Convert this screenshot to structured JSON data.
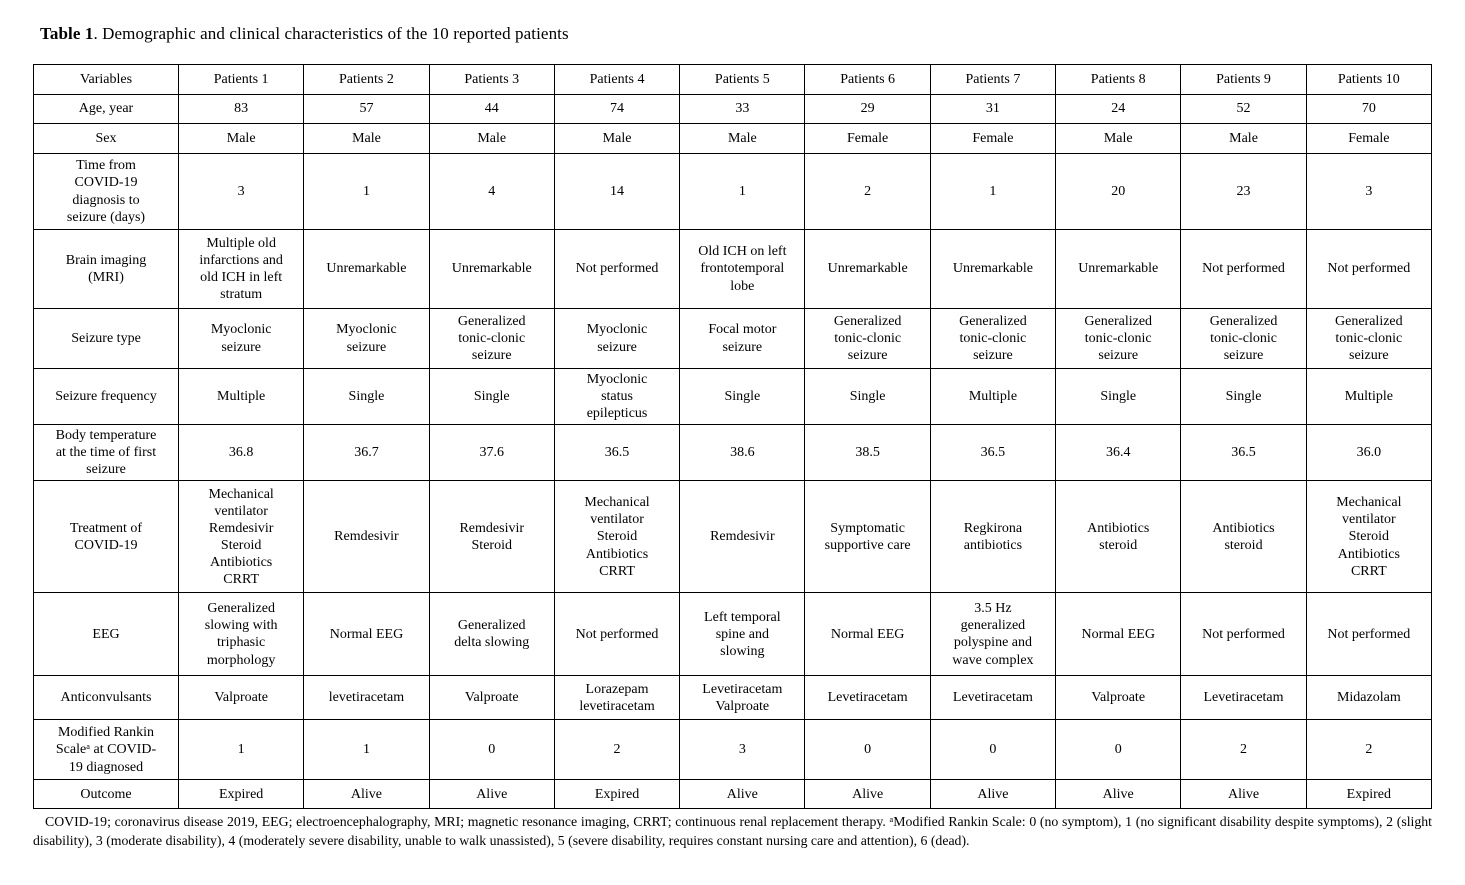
{
  "title": {
    "bold": "Table 1",
    "caption": ". Demographic and clinical characteristics of the 10 reported patients"
  },
  "table": {
    "header": [
      "Variables",
      "Patients 1",
      "Patients 2",
      "Patients 3",
      "Patients 4",
      "Patients 5",
      "Patients 6",
      "Patients 7",
      "Patients 8",
      "Patients 9",
      "Patients 10"
    ],
    "rows": [
      {
        "label": "Age, year",
        "values": [
          "83",
          "57",
          "44",
          "74",
          "33",
          "29",
          "31",
          "24",
          "52",
          "70"
        ]
      },
      {
        "label": "Sex",
        "values": [
          "Male",
          "Male",
          "Male",
          "Male",
          "Male",
          "Female",
          "Female",
          "Male",
          "Male",
          "Female"
        ]
      },
      {
        "label": "Time from\nCOVID-19\ndiagnosis to\nseizure (days)",
        "values": [
          "3",
          "1",
          "4",
          "14",
          "1",
          "2",
          "1",
          "20",
          "23",
          "3"
        ]
      },
      {
        "label": "Brain imaging\n(MRI)",
        "values": [
          "Multiple old\ninfarctions and\nold ICH in left\nstratum",
          "Unremarkable",
          "Unremarkable",
          "Not performed",
          "Old ICH on left\nfrontotemporal\nlobe",
          "Unremarkable",
          "Unremarkable",
          "Unremarkable",
          "Not performed",
          "Not performed"
        ]
      },
      {
        "label": "Seizure type",
        "values": [
          "Myoclonic\nseizure",
          "Myoclonic\nseizure",
          "Generalized\ntonic-clonic\nseizure",
          "Myoclonic\nseizure",
          "Focal motor\nseizure",
          "Generalized\ntonic-clonic\nseizure",
          "Generalized\ntonic-clonic\nseizure",
          "Generalized\ntonic-clonic\nseizure",
          "Generalized\ntonic-clonic\nseizure",
          "Generalized\ntonic-clonic\nseizure"
        ]
      },
      {
        "label": "Seizure frequency",
        "values": [
          "Multiple",
          "Single",
          "Single",
          "Myoclonic\nstatus\nepilepticus",
          "Single",
          "Single",
          "Multiple",
          "Single",
          "Single",
          "Multiple"
        ]
      },
      {
        "label": "Body temperature\nat the time of first\nseizure",
        "values": [
          "36.8",
          "36.7",
          "37.6",
          "36.5",
          "38.6",
          "38.5",
          "36.5",
          "36.4",
          "36.5",
          "36.0"
        ]
      },
      {
        "label": "Treatment of\nCOVID-19",
        "values": [
          "Mechanical\nventilator\nRemdesivir\nSteroid\nAntibiotics\nCRRT",
          "Remdesivir",
          "Remdesivir\nSteroid",
          "Mechanical\nventilator\nSteroid\nAntibiotics\nCRRT",
          "Remdesivir",
          "Symptomatic\nsupportive care",
          "Regkirona\nantibiotics",
          "Antibiotics\nsteroid",
          "Antibiotics\nsteroid",
          "Mechanical\nventilator\nSteroid\nAntibiotics\nCRRT"
        ]
      },
      {
        "label": "EEG",
        "values": [
          "Generalized\nslowing with\ntriphasic\nmorphology",
          "Normal EEG",
          "Generalized\ndelta slowing",
          "Not performed",
          "Left temporal\nspine and\nslowing",
          "Normal EEG",
          "3.5 Hz\ngeneralized\npolyspine and\nwave complex",
          "Normal EEG",
          "Not performed",
          "Not performed"
        ]
      },
      {
        "label": "Anticonvulsants",
        "values": [
          "Valproate",
          "levetiracetam",
          "Valproate",
          "Lorazepam\nlevetiracetam",
          "Levetiracetam\nValproate",
          "Levetiracetam",
          "Levetiracetam",
          "Valproate",
          "Levetiracetam",
          "Midazolam"
        ]
      },
      {
        "label": "Modified Rankin\nScaleᵃ at COVID-\n19 diagnosed",
        "values": [
          "1",
          "1",
          "0",
          "2",
          "3",
          "0",
          "0",
          "0",
          "2",
          "2"
        ]
      },
      {
        "label": "Outcome",
        "values": [
          "Expired",
          "Alive",
          "Alive",
          "Expired",
          "Alive",
          "Alive",
          "Alive",
          "Alive",
          "Alive",
          "Expired"
        ]
      }
    ]
  },
  "footnote": "COVID-19; coronavirus disease 2019, EEG; electroencephalography, MRI; magnetic resonance imaging, CRRT; continuous renal replacement therapy. ᵃModified Rankin Scale: 0 (no symptom), 1 (no significant disability despite symptoms), 2 (slight disability), 3 (moderate disability), 4 (moderately severe disability, unable to walk unassisted), 5 (severe disability, requires constant nursing care and attention), 6 (dead)."
}
